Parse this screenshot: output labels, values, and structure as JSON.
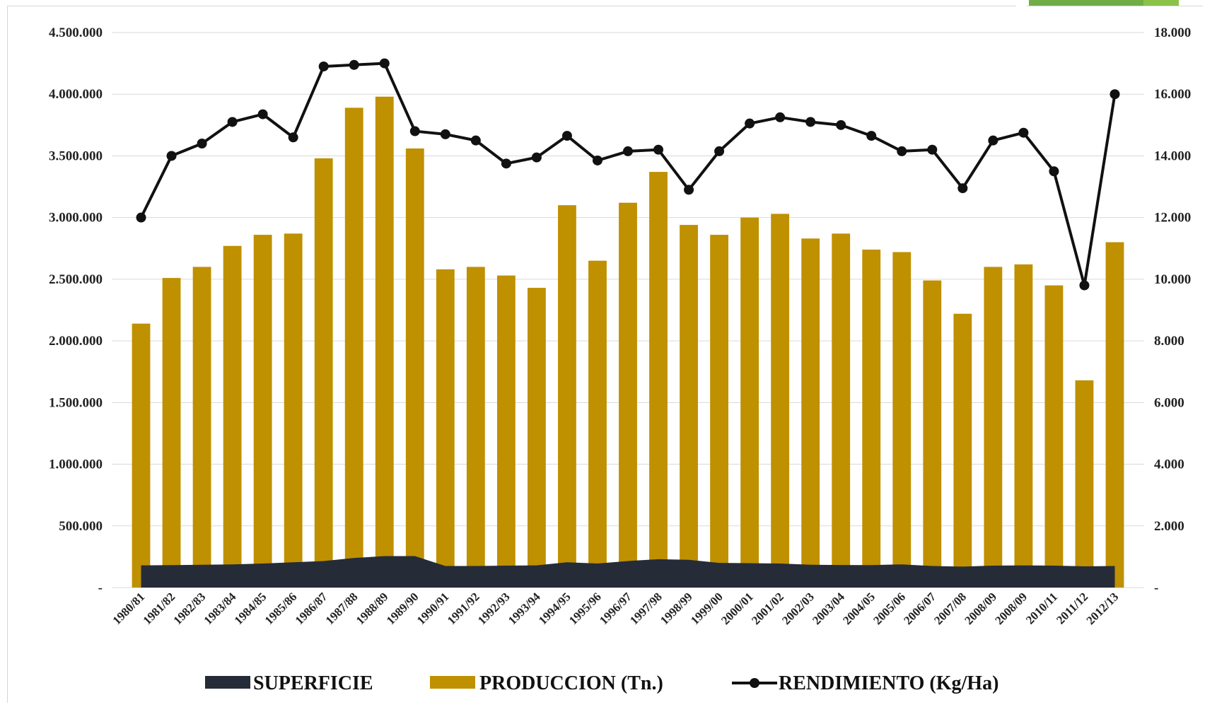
{
  "chart_data": {
    "type": "bar",
    "categories": [
      "1980/81",
      "1981/82",
      "1982/83",
      "1983/84",
      "1984/85",
      "1985/86",
      "1986/87",
      "1987/88",
      "1988/89",
      "1989/90",
      "1990/91",
      "1991/92",
      "1992/93",
      "1993/94",
      "1994/95",
      "1995/96",
      "1996/97",
      "1997/98",
      "1998/99",
      "1999/00",
      "2000/01",
      "2001/02",
      "2002/03",
      "2003/04",
      "2004/05",
      "2005/06",
      "2006/07",
      "2007/08",
      "2008/09",
      "2008/09",
      "2010/11",
      "2011/12",
      "2012/13"
    ],
    "series": [
      {
        "name": "SUPERFICIE",
        "type": "area",
        "axis": "left",
        "color": "#252c38",
        "values": [
          180000,
          182000,
          185000,
          188000,
          195000,
          205000,
          215000,
          240000,
          255000,
          255000,
          175000,
          175000,
          178000,
          180000,
          205000,
          195000,
          215000,
          230000,
          225000,
          200000,
          198000,
          195000,
          185000,
          183000,
          182000,
          188000,
          175000,
          170000,
          178000,
          180000,
          178000,
          172000,
          175000
        ]
      },
      {
        "name": "PRODUCCION (Tn.)",
        "type": "bar",
        "axis": "left",
        "color": "#bf9000",
        "values": [
          2140000,
          2510000,
          2600000,
          2770000,
          2860000,
          2870000,
          3480000,
          3890000,
          3980000,
          3560000,
          2580000,
          2600000,
          2530000,
          2430000,
          3100000,
          2650000,
          3120000,
          3370000,
          2940000,
          2860000,
          3000000,
          3030000,
          2830000,
          2870000,
          2740000,
          2720000,
          2490000,
          2220000,
          2600000,
          2620000,
          2450000,
          1680000,
          2800000
        ]
      },
      {
        "name": "RENDIMIENTO (Kg/Ha)",
        "type": "line",
        "axis": "right",
        "color": "#111111",
        "values": [
          12000,
          14000,
          14400,
          15100,
          15350,
          14600,
          16900,
          16950,
          17000,
          14800,
          14700,
          14500,
          13750,
          13950,
          14650,
          13850,
          14150,
          14200,
          12900,
          14150,
          15050,
          15250,
          15100,
          15000,
          14650,
          14150,
          14200,
          12950,
          14500,
          14750,
          13500,
          9800,
          16000
        ]
      }
    ],
    "y_left": {
      "ylim": [
        0,
        4500000
      ],
      "ticks": [
        0,
        500000,
        1000000,
        1500000,
        2000000,
        2500000,
        3000000,
        3500000,
        4000000,
        4500000
      ],
      "tick_labels": [
        "-",
        "500.000",
        "1.000.000",
        "1.500.000",
        "2.000.000",
        "2.500.000",
        "3.000.000",
        "3.500.000",
        "4.000.000",
        "4.500.000"
      ]
    },
    "y_right": {
      "ylim": [
        0,
        18000
      ],
      "ticks": [
        0,
        2000,
        4000,
        6000,
        8000,
        10000,
        12000,
        14000,
        16000,
        18000
      ],
      "tick_labels": [
        "-",
        "2.000",
        "4.000",
        "6.000",
        "8.000",
        "10.000",
        "12.000",
        "14.000",
        "16.000",
        "18.000"
      ]
    },
    "grid": "horizontal",
    "legend": "bottom",
    "title": "",
    "xlabel": "",
    "ylabel": ""
  },
  "decor": {
    "corner_accent_color": "#70ad47"
  }
}
